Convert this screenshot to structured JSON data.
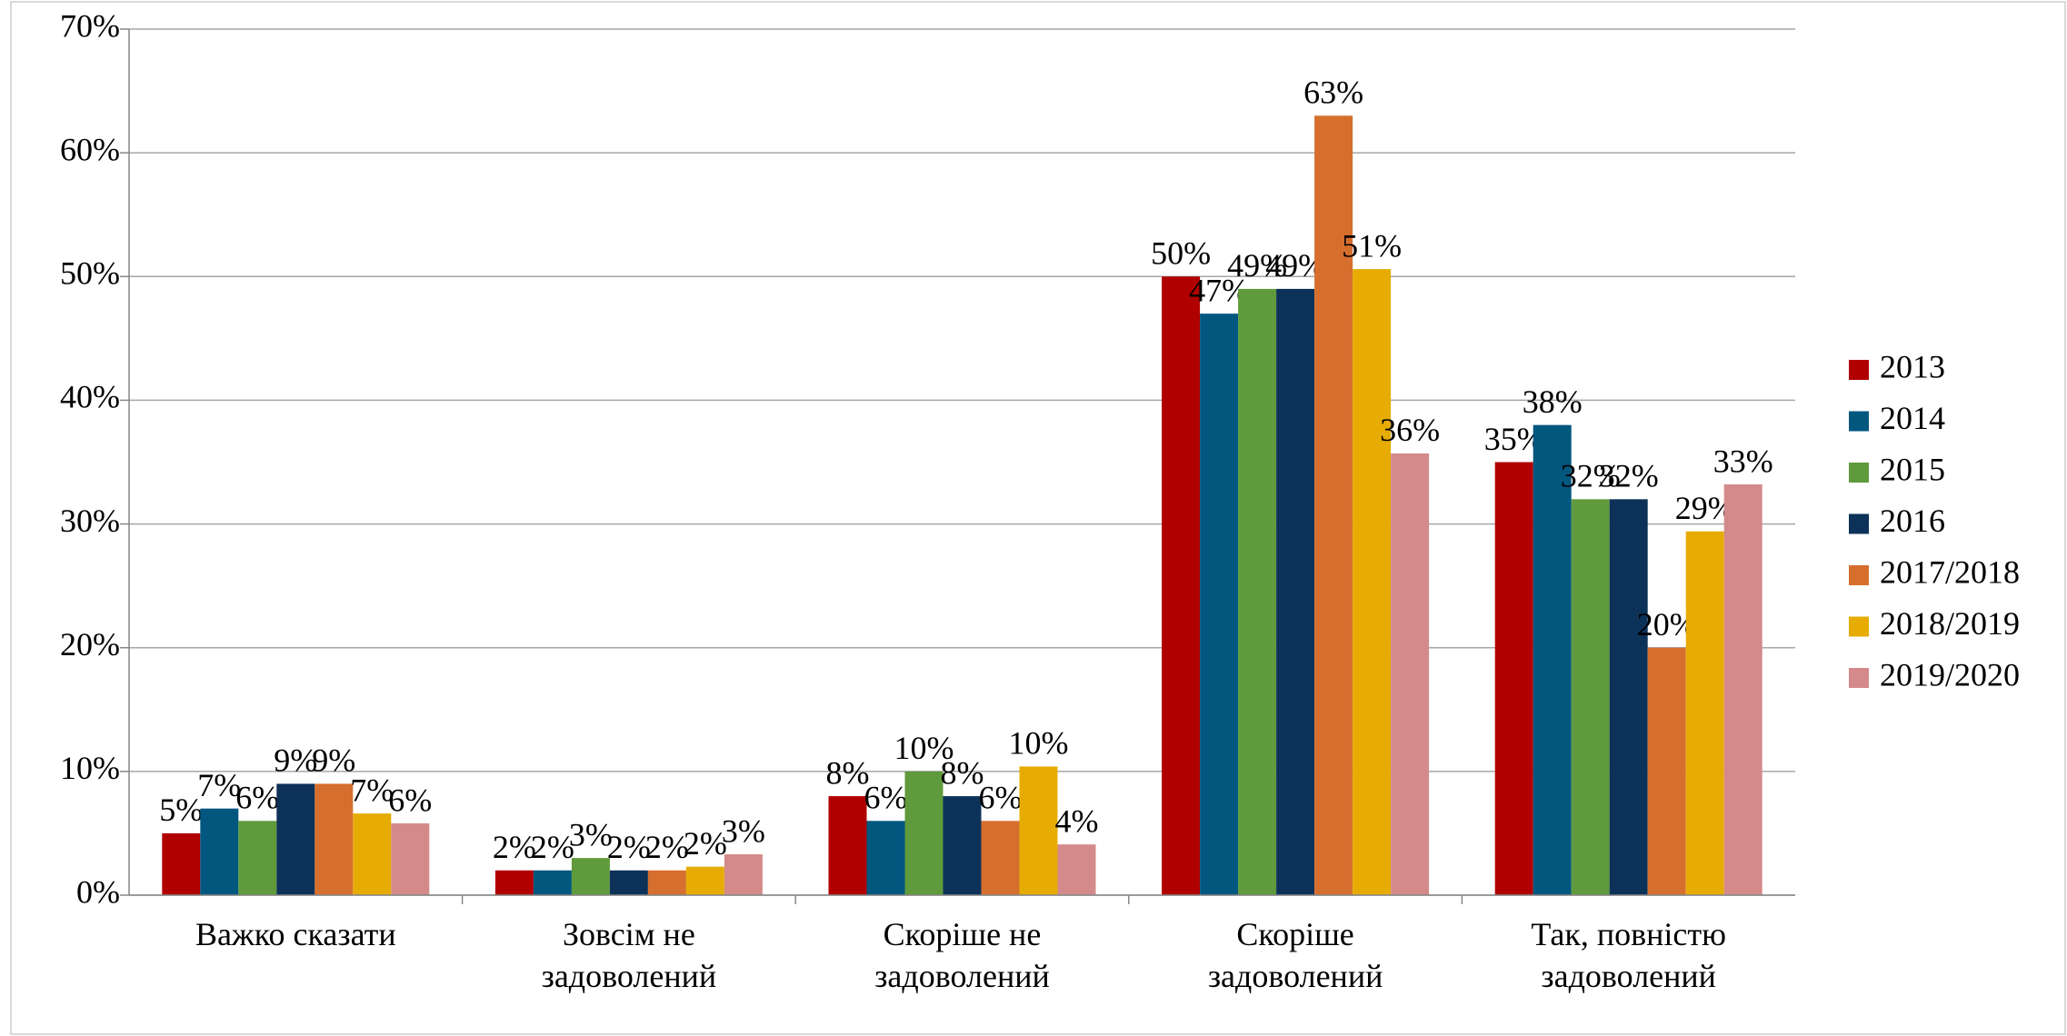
{
  "chart_data": {
    "type": "bar",
    "categories": [
      "Важко сказати",
      "Зовсім не задоволений",
      "Скоріше не задоволений",
      "Скоріше задоволений",
      "Так, повністю задоволений"
    ],
    "series": [
      {
        "name": "2013",
        "color": "#b00000",
        "values": [
          5,
          2,
          8,
          50,
          35
        ],
        "value_labels": [
          "5%",
          "2%",
          "8%",
          "50%",
          "35%"
        ]
      },
      {
        "name": "2014",
        "color": "#02577f",
        "values": [
          7,
          2,
          6,
          47,
          38
        ],
        "value_labels": [
          "7%",
          "2%",
          "6%",
          "47%",
          "38%"
        ]
      },
      {
        "name": "2015",
        "color": "#5f9a3c",
        "values": [
          6,
          3,
          10,
          49,
          32
        ],
        "value_labels": [
          "6%",
          "3%",
          "10%",
          "49%",
          "32%"
        ]
      },
      {
        "name": "2016",
        "color": "#0d3259",
        "values": [
          9,
          2,
          8,
          49,
          32
        ],
        "value_labels": [
          "9%",
          "2%",
          "8%",
          "49%",
          "32%"
        ]
      },
      {
        "name": "2017/2018",
        "color": "#d66f2e",
        "values": [
          9,
          2,
          6,
          63,
          20
        ],
        "value_labels": [
          "9%",
          "2%",
          "6%",
          "63%",
          "20%"
        ]
      },
      {
        "name": "2018/2019",
        "color": "#e6ac04",
        "values": [
          6.6,
          2.3,
          10.4,
          50.6,
          29.4
        ],
        "value_labels": [
          "7%",
          "2%",
          "10%",
          "51%",
          "29%"
        ]
      },
      {
        "name": "2019/2020",
        "color": "#d48a8a",
        "values": [
          5.8,
          3.3,
          4.1,
          35.7,
          33.2
        ],
        "value_labels": [
          "6%",
          "3%",
          "4%",
          "36%",
          "33%"
        ]
      }
    ],
    "ylim": [
      0,
      70
    ],
    "yticks": [
      {
        "value": 0,
        "label": "0%"
      },
      {
        "value": 10,
        "label": "10%"
      },
      {
        "value": 20,
        "label": "20%"
      },
      {
        "value": 30,
        "label": "30%"
      },
      {
        "value": 40,
        "label": "40%"
      },
      {
        "value": 50,
        "label": "50%"
      },
      {
        "value": 60,
        "label": "60%"
      },
      {
        "value": 70,
        "label": "70%"
      }
    ],
    "grid": true,
    "legend": "right"
  }
}
